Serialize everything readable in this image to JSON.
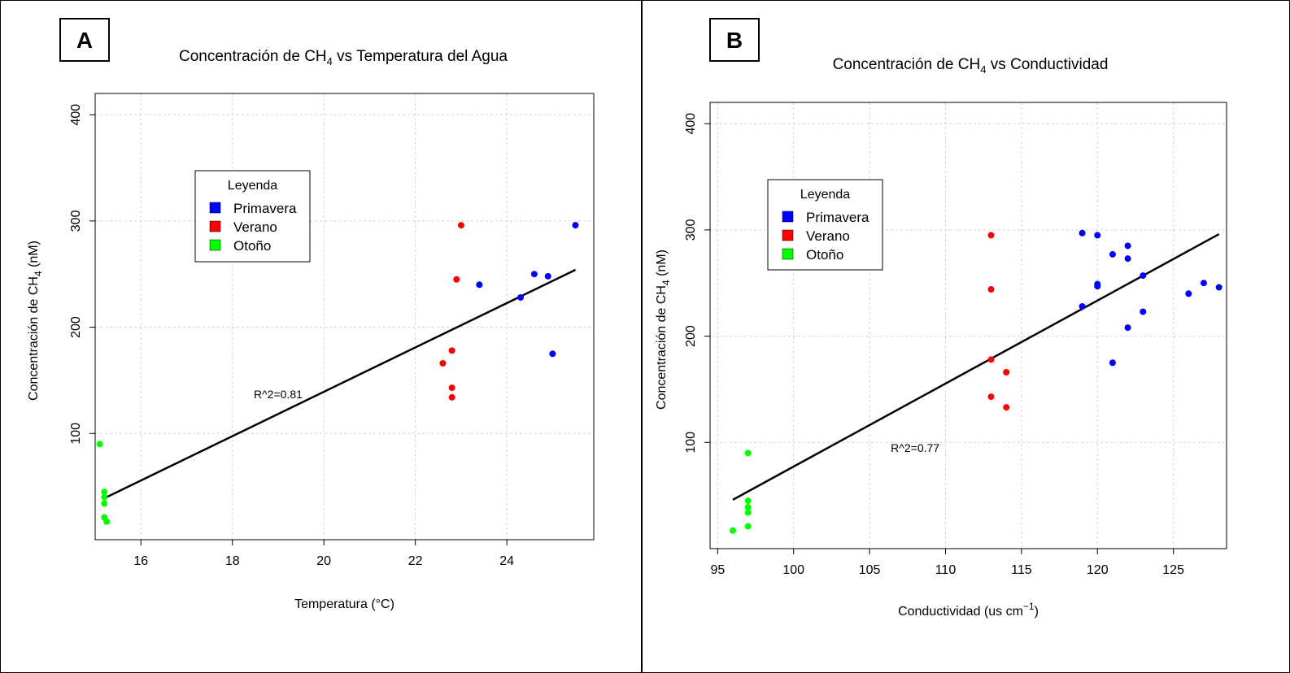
{
  "chart_data": [
    {
      "type": "scatter",
      "panel_label": "A",
      "title": "Concentración de CH",
      "title_sub": "4",
      "title_end": " vs Temperatura del Agua",
      "xlabel": "Temperatura (°C)",
      "ylabel": "Concentración de CH",
      "ylabel_sub": "4",
      "ylabel_end": " (nM)",
      "xlim": [
        15.0,
        25.9
      ],
      "ylim": [
        0,
        420
      ],
      "xticks": [
        16,
        18,
        20,
        22,
        24
      ],
      "yticks": [
        100,
        200,
        300,
        400
      ],
      "grid": true,
      "legend": {
        "title": "Leyenda",
        "placement": "upper-left",
        "entries": [
          "Primavera",
          "Verano",
          "Otoño"
        ]
      },
      "annotation": {
        "text": "R^2=0.81",
        "x": 19.0,
        "y": 133
      },
      "regression_line": {
        "x": [
          15.2,
          25.5
        ],
        "y": [
          39,
          254
        ]
      },
      "series": [
        {
          "name": "Primavera",
          "color": "#0000ff",
          "points": [
            [
              23.4,
              240
            ],
            [
              24.3,
              228
            ],
            [
              24.6,
              250
            ],
            [
              24.9,
              248
            ],
            [
              25.0,
              175
            ],
            [
              25.5,
              296
            ]
          ]
        },
        {
          "name": "Verano",
          "color": "#ff0000",
          "points": [
            [
              22.6,
              166
            ],
            [
              22.8,
              178
            ],
            [
              22.8,
              143
            ],
            [
              22.8,
              134
            ],
            [
              22.9,
              245
            ],
            [
              23.0,
              296
            ]
          ]
        },
        {
          "name": "Otoño",
          "color": "#00ff00",
          "points": [
            [
              15.1,
              90
            ],
            [
              15.2,
              45
            ],
            [
              15.2,
              40
            ],
            [
              15.2,
              34
            ],
            [
              15.2,
              21
            ],
            [
              15.25,
              17
            ]
          ]
        }
      ]
    },
    {
      "type": "scatter",
      "panel_label": "B",
      "title": "Concentración de CH",
      "title_sub": "4",
      "title_end": " vs Conductividad",
      "xlabel": "Conductividad (us cm",
      "xlabel_sup": "−1",
      "xlabel_end": ")",
      "ylabel": "Concentración de CH",
      "ylabel_sub": "4",
      "ylabel_end": " (nM)",
      "xlim": [
        94.5,
        128.5
      ],
      "ylim": [
        0,
        420
      ],
      "xticks": [
        95,
        100,
        105,
        110,
        115,
        120,
        125
      ],
      "yticks": [
        100,
        200,
        300,
        400
      ],
      "grid": true,
      "legend": {
        "title": "Leyenda",
        "placement": "upper-left",
        "entries": [
          "Primavera",
          "Verano",
          "Otoño"
        ]
      },
      "annotation": {
        "text": "R^2=0.77",
        "x": 108,
        "y": 91
      },
      "regression_line": {
        "x": [
          96.0,
          128.0
        ],
        "y": [
          46,
          296
        ]
      },
      "series": [
        {
          "name": "Primavera",
          "color": "#0000ff",
          "points": [
            [
              119,
              297
            ],
            [
              120,
              295
            ],
            [
              121,
              277
            ],
            [
              122,
              285
            ],
            [
              122,
              273
            ],
            [
              123,
              257
            ],
            [
              120,
              249
            ],
            [
              120,
              247
            ],
            [
              119,
              228
            ],
            [
              123,
              223
            ],
            [
              122,
              208
            ],
            [
              121,
              175
            ],
            [
              126,
              240
            ],
            [
              127,
              250
            ],
            [
              128,
              246
            ]
          ]
        },
        {
          "name": "Verano",
          "color": "#ff0000",
          "points": [
            [
              113,
              295
            ],
            [
              113,
              244
            ],
            [
              113,
              178
            ],
            [
              114,
              166
            ],
            [
              113,
              143
            ],
            [
              114,
              133
            ]
          ]
        },
        {
          "name": "Otoño",
          "color": "#00ff00",
          "points": [
            [
              97,
              90
            ],
            [
              97,
              45
            ],
            [
              97,
              39
            ],
            [
              97,
              34
            ],
            [
              97,
              21
            ],
            [
              96,
              17
            ]
          ]
        }
      ]
    }
  ]
}
